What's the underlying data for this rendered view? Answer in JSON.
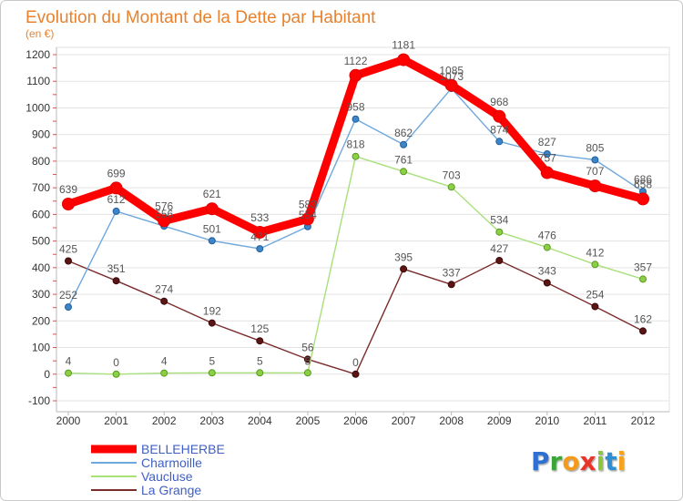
{
  "chart_data": {
    "type": "line",
    "title": "Evolution du Montant de la Dette par Habitant",
    "subtitle": "(en €)",
    "x": [
      "2000",
      "2001",
      "2002",
      "2003",
      "2004",
      "2005",
      "2006",
      "2007",
      "2008",
      "2009",
      "2010",
      "2011",
      "2012"
    ],
    "ylim": [
      -100,
      1200
    ],
    "yticks": [
      -100,
      0,
      100,
      200,
      300,
      400,
      500,
      600,
      700,
      800,
      900,
      1000,
      1100,
      1200
    ],
    "grid": true,
    "legend_position": "bottom-left",
    "series": [
      {
        "name": "BELLEHERBE",
        "color": "#ff0000",
        "marker_fill": "#ff0000",
        "marker_stroke": "#e00000",
        "values": [
          639,
          699,
          576,
          621,
          533,
          583,
          1122,
          1181,
          1085,
          968,
          757,
          707,
          658
        ]
      },
      {
        "name": "Charmoille",
        "color": "#6fa8dc",
        "marker_fill": "#3d85c6",
        "marker_stroke": "#1f5f9e",
        "values": [
          252,
          612,
          556,
          501,
          471,
          554,
          958,
          862,
          1073,
          874,
          827,
          805,
          686
        ]
      },
      {
        "name": "Vaucluse",
        "color": "#a8e07a",
        "marker_fill": "#8bcf45",
        "marker_stroke": "#5a9a22",
        "values": [
          4,
          0,
          4,
          5,
          5,
          5,
          818,
          761,
          703,
          534,
          476,
          412,
          357
        ]
      },
      {
        "name": "La Grange",
        "color": "#7b2c2c",
        "marker_fill": "#5c1515",
        "marker_stroke": "#3a0808",
        "values": [
          425,
          351,
          274,
          192,
          125,
          56,
          0,
          395,
          337,
          427,
          343,
          254,
          162
        ]
      }
    ]
  },
  "colors": {
    "title": "#e8822e",
    "legend_text": "#3f5fc4",
    "data_label": "#555555",
    "minor_tick": "#e05050"
  },
  "logo": {
    "letters": [
      "P",
      "r",
      "o",
      "x",
      "i",
      "t",
      "i"
    ],
    "colors": [
      "#2d6fd2",
      "#3aa639",
      "#f39a1b",
      "#e8352b",
      "#8cc63e",
      "#2d8fd2",
      "#f5a21b"
    ]
  }
}
